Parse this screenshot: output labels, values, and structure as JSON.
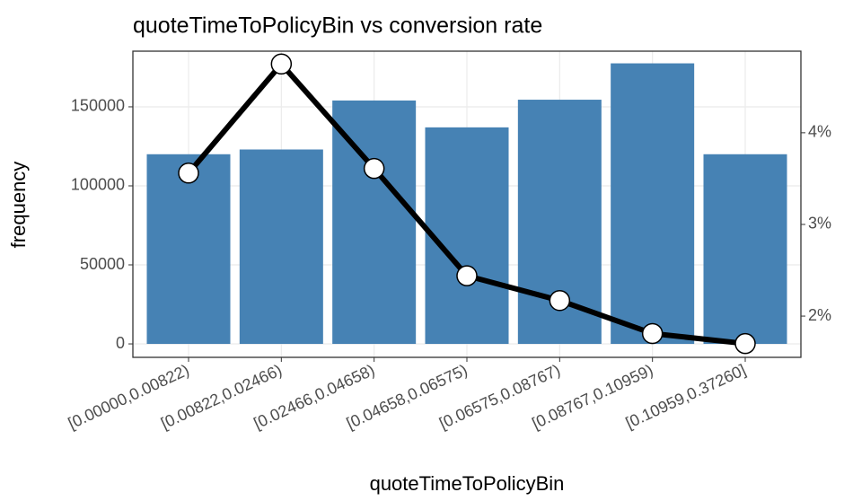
{
  "chart_data": {
    "type": "bar-line",
    "title": "quoteTimeToPolicyBin vs conversion rate",
    "xlabel": "quoteTimeToPolicyBin",
    "ylabel": "frequency",
    "categories": [
      "[0.00000,0.00822)",
      "[0.00822,0.02466)",
      "[0.02466,0.04658)",
      "[0.04658,0.06575)",
      "[0.06575,0.08767)",
      "[0.08767,0.10959)",
      "[0.10959,0.37260]"
    ],
    "series": [
      {
        "name": "frequency",
        "type": "bar",
        "color": "#4682b4",
        "values": [
          120000,
          123000,
          154000,
          137000,
          154500,
          177500,
          120000
        ]
      },
      {
        "name": "conversion rate",
        "type": "line",
        "axis": "y2",
        "color": "#000000",
        "values": [
          3.56,
          4.75,
          3.61,
          2.44,
          2.17,
          1.81,
          1.7
        ]
      }
    ],
    "ylim": [
      -8500,
      185200
    ],
    "yticks": [
      0,
      50000,
      100000,
      150000
    ],
    "y2lim": [
      1.55,
      4.89
    ],
    "y2ticks": [
      {
        "value": 2,
        "label": "2%"
      },
      {
        "value": 3,
        "label": "3%"
      },
      {
        "value": 4,
        "label": "4%"
      }
    ],
    "grid": true
  }
}
